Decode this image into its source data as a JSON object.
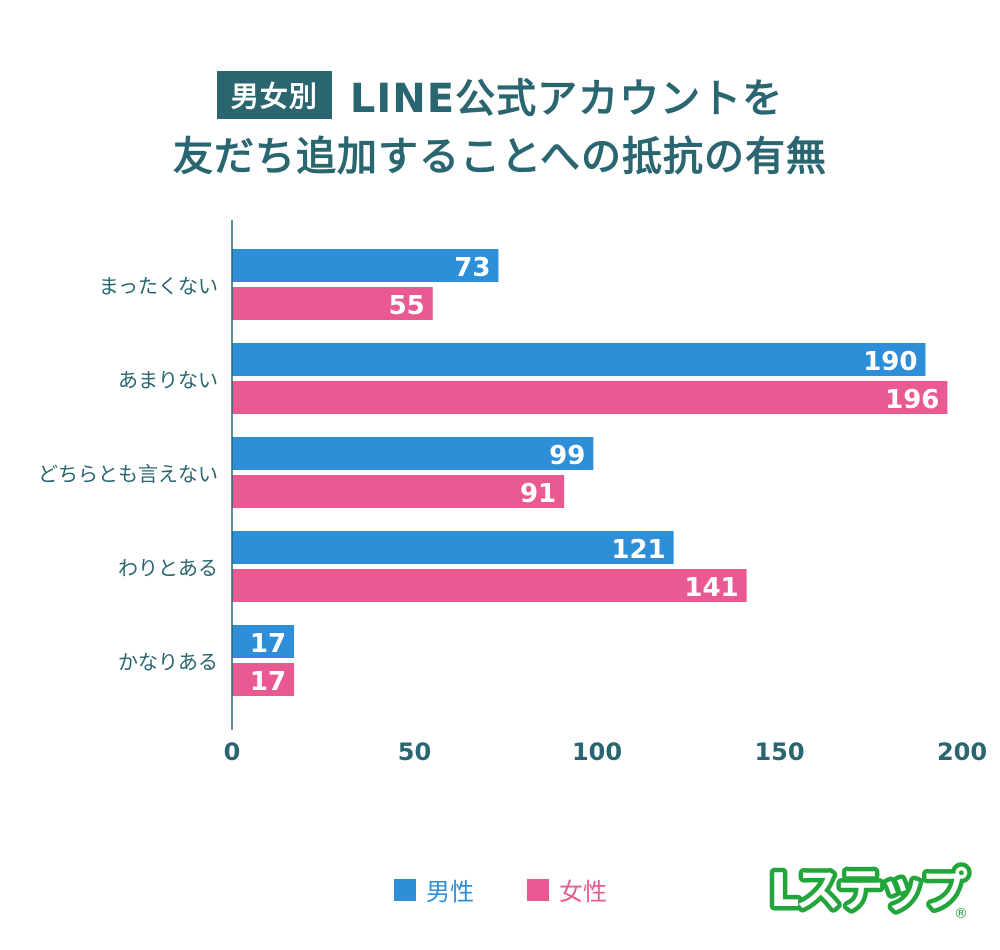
{
  "title": {
    "badge": "男女別",
    "line1": "LINE公式アカウントを",
    "line2": "友だち追加することへの抵抗の有無"
  },
  "colors": {
    "title": "#2a6670",
    "male": "#2e8fd8",
    "female": "#ea5a92",
    "axis": "#2a6670",
    "logo": "#22a53a"
  },
  "chart_data": {
    "type": "bar",
    "orientation": "horizontal",
    "categories": [
      "まったくない",
      "あまりない",
      "どちらとも言えない",
      "わりとある",
      "かなりある"
    ],
    "series": [
      {
        "name": "男性",
        "values": [
          73,
          190,
          99,
          121,
          17
        ]
      },
      {
        "name": "女性",
        "values": [
          55,
          196,
          91,
          141,
          17
        ]
      }
    ],
    "xlim": [
      0,
      200
    ],
    "xticks": [
      0,
      50,
      100,
      150,
      200
    ],
    "grid": false,
    "data_labels": true,
    "legend": "bottom"
  },
  "legend": {
    "male": "男性",
    "female": "女性"
  },
  "logo": {
    "text": "Lステップ",
    "mark": "®"
  }
}
